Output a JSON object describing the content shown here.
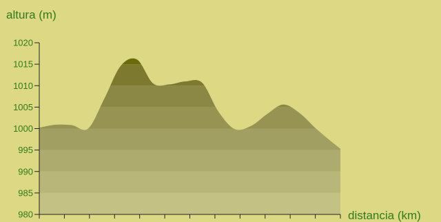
{
  "chart_data": {
    "type": "area",
    "ylabel": "altura (m)",
    "xlabel": "distancia (km)",
    "ylim": [
      980,
      1020
    ],
    "y_ticks": [
      980,
      985,
      990,
      995,
      1000,
      1005,
      1010,
      1015,
      1020
    ],
    "y_tick_labels": [
      "980",
      "985",
      "990",
      "995",
      "1000",
      "1005",
      "1010",
      "1015",
      "1020"
    ],
    "x_tick_count": 13,
    "band_colors": [
      "#c4c185",
      "#b9b67a",
      "#aeab6e",
      "#a29f62",
      "#979353",
      "#8b8745",
      "#7d7a30",
      "#6a6b0a",
      "#3a7010"
    ],
    "profile": [
      {
        "x": 0.0,
        "y": 1000.2
      },
      {
        "x": 1.0,
        "y": 1000.9
      },
      {
        "x": 2.0,
        "y": 1000.8
      },
      {
        "x": 3.0,
        "y": 1000.0
      },
      {
        "x": 4.0,
        "y": 1007.0
      },
      {
        "x": 5.0,
        "y": 1014.6
      },
      {
        "x": 6.0,
        "y": 1016.1
      },
      {
        "x": 7.0,
        "y": 1010.5
      },
      {
        "x": 8.0,
        "y": 1010.3
      },
      {
        "x": 9.0,
        "y": 1011.0
      },
      {
        "x": 10.0,
        "y": 1010.7
      },
      {
        "x": 11.0,
        "y": 1004.0
      },
      {
        "x": 12.0,
        "y": 999.9
      },
      {
        "x": 13.0,
        "y": 1000.6
      },
      {
        "x": 14.0,
        "y": 1003.4
      },
      {
        "x": 15.0,
        "y": 1005.6
      },
      {
        "x": 16.0,
        "y": 1003.6
      },
      {
        "x": 17.0,
        "y": 1000.0
      },
      {
        "x": 18.0,
        "y": 996.8
      },
      {
        "x": 18.5,
        "y": 995.3
      }
    ]
  }
}
